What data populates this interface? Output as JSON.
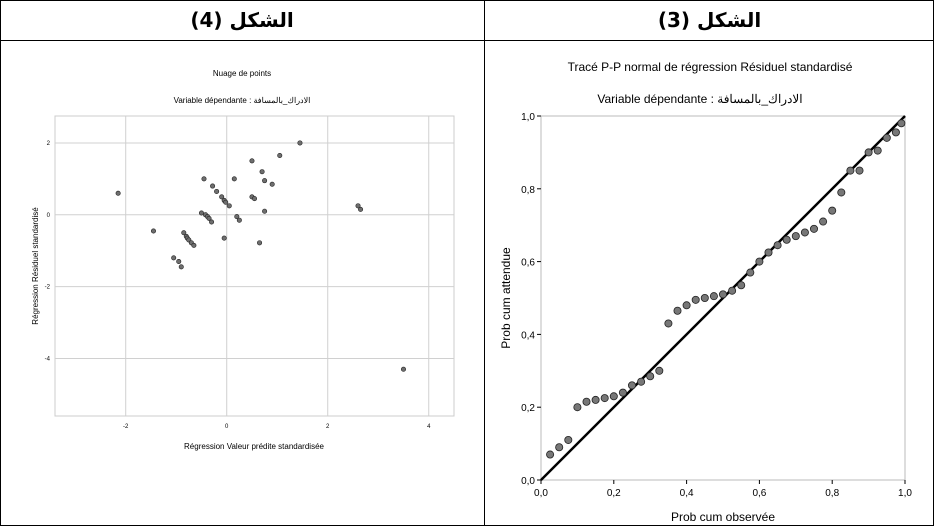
{
  "headers": {
    "left": "الشكل (4)",
    "right": "الشكل (3)"
  },
  "chart_data": [
    {
      "type": "scatter",
      "title": "Nuage de points",
      "subtitle": "Variable dépendante : الادراك_بالمسافة",
      "xlabel": "Régression Valeur prédite standardisée",
      "ylabel": "Régression Résiduel standardisé",
      "xlim": [
        -3.4,
        4.5
      ],
      "ylim": [
        -5.6,
        2.75
      ],
      "xticks": [
        -2,
        0,
        2,
        4
      ],
      "yticks": [
        2,
        0,
        -2,
        -4
      ],
      "grid": true,
      "points": {
        "x": [
          -2.15,
          -1.45,
          -1.05,
          -0.95,
          -0.9,
          -0.85,
          -0.8,
          -0.78,
          -0.75,
          -0.7,
          -0.65,
          -0.5,
          -0.45,
          -0.42,
          -0.38,
          -0.35,
          -0.3,
          -0.28,
          -0.2,
          -0.1,
          -0.05,
          -0.02,
          0.05,
          0.15,
          0.2,
          0.25,
          -0.05,
          0.5,
          0.5,
          0.55,
          0.65,
          0.7,
          0.75,
          0.75,
          0.9,
          1.05,
          1.45,
          2.6,
          2.65,
          3.5
        ],
        "y": [
          0.6,
          -0.45,
          -1.2,
          -1.3,
          -1.45,
          -0.5,
          -0.6,
          -0.65,
          -0.7,
          -0.78,
          -0.85,
          0.05,
          1.0,
          0.0,
          -0.05,
          -0.1,
          -0.2,
          0.8,
          0.65,
          0.5,
          0.4,
          0.35,
          0.25,
          1.0,
          -0.05,
          -0.15,
          -0.65,
          0.5,
          1.5,
          0.45,
          -0.78,
          1.2,
          0.95,
          0.1,
          0.85,
          1.65,
          2.0,
          0.25,
          0.15,
          -4.3
        ]
      }
    },
    {
      "type": "scatter",
      "title": "Tracé P-P normal de régression Résiduel standardisé",
      "subtitle": "Variable dépendante : الادراك_بالمسافة",
      "xlabel": "Prob cum observée",
      "ylabel": "Prob cum attendue",
      "xlim": [
        0,
        1
      ],
      "ylim": [
        0,
        1
      ],
      "xtick_labels": [
        "0,0",
        "0,2",
        "0,4",
        "0,6",
        "0,8",
        "1,0"
      ],
      "ytick_labels": [
        "0,0",
        "0,2",
        "0,4",
        "0,6",
        "0,8",
        "1,0"
      ],
      "grid": false,
      "reference_line": [
        [
          0,
          0
        ],
        [
          1,
          1
        ]
      ],
      "points": {
        "x": [
          0.025,
          0.05,
          0.075,
          0.1,
          0.125,
          0.15,
          0.175,
          0.2,
          0.225,
          0.25,
          0.275,
          0.3,
          0.325,
          0.35,
          0.375,
          0.4,
          0.425,
          0.45,
          0.475,
          0.5,
          0.525,
          0.55,
          0.575,
          0.6,
          0.625,
          0.65,
          0.675,
          0.7,
          0.725,
          0.75,
          0.775,
          0.8,
          0.825,
          0.85,
          0.875,
          0.9,
          0.925,
          0.95,
          0.975,
          0.99
        ],
        "y": [
          0.07,
          0.09,
          0.11,
          0.2,
          0.215,
          0.22,
          0.225,
          0.23,
          0.24,
          0.26,
          0.27,
          0.285,
          0.3,
          0.43,
          0.465,
          0.48,
          0.495,
          0.5,
          0.505,
          0.51,
          0.52,
          0.535,
          0.57,
          0.6,
          0.625,
          0.645,
          0.66,
          0.67,
          0.68,
          0.69,
          0.71,
          0.74,
          0.79,
          0.85,
          0.85,
          0.9,
          0.905,
          0.94,
          0.955,
          0.98
        ]
      }
    }
  ]
}
